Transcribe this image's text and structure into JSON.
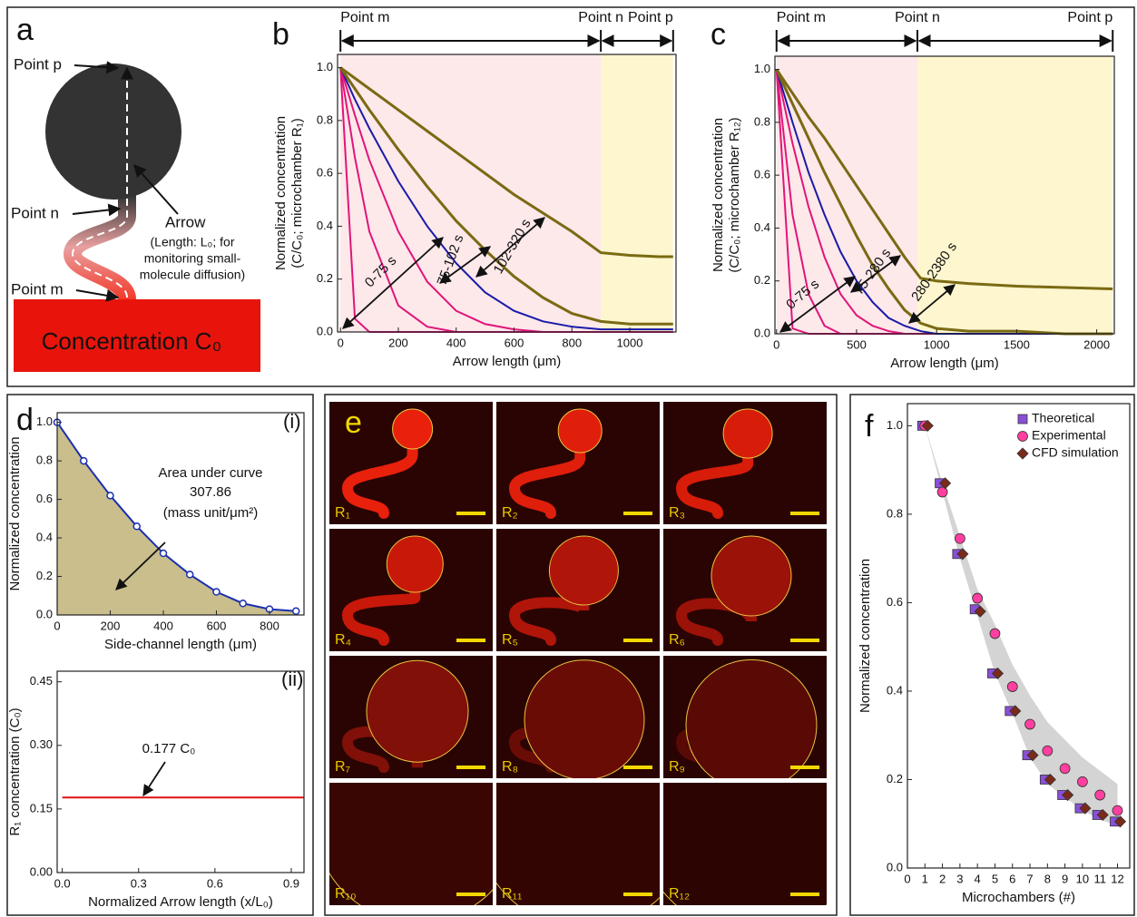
{
  "panel_a": {
    "label": "a",
    "point_p": "Point p",
    "point_n": "Point n",
    "point_m": "Point m",
    "arrow": "Arrow",
    "arrow_note": [
      "(Length: L₀; for",
      "monitoring small-",
      "molecule diffusion)"
    ],
    "source": "Concentration C₀"
  },
  "panel_e": {
    "label": "e",
    "chambers": [
      "R₁",
      "R₂",
      "R₃",
      "R₄",
      "R₅",
      "R₆",
      "R₇",
      "R₈",
      "R₉",
      "R₁₀",
      "R₁₁",
      "R₁₂"
    ]
  },
  "chart_data": [
    {
      "type": "line",
      "panel": "b",
      "xlabel": "Arrow length (μm)",
      "ylabel": [
        "Normalized concentration",
        "(C/C₀; microchamber R₁)"
      ],
      "x": [
        0,
        50,
        100,
        200,
        300,
        400,
        500,
        600,
        700,
        800,
        900,
        1000,
        1100,
        1150
      ],
      "series": [
        {
          "color": "#7a6a12",
          "values": [
            1.0,
            0.96,
            0.92,
            0.84,
            0.76,
            0.68,
            0.6,
            0.52,
            0.45,
            0.38,
            0.3,
            0.29,
            0.285,
            0.285
          ]
        },
        {
          "color": "#7a6a12",
          "values": [
            1.0,
            0.92,
            0.84,
            0.69,
            0.55,
            0.42,
            0.31,
            0.21,
            0.13,
            0.07,
            0.04,
            0.03,
            0.03,
            0.03
          ]
        },
        {
          "color": "#1a1aa8",
          "values": [
            1.0,
            0.88,
            0.77,
            0.57,
            0.4,
            0.26,
            0.15,
            0.08,
            0.04,
            0.02,
            0.01,
            0.01,
            0.01,
            0.01
          ]
        },
        {
          "color": "#e0157a",
          "values": [
            1.0,
            0.82,
            0.65,
            0.38,
            0.19,
            0.08,
            0.03,
            0.01,
            0,
            0,
            0,
            0,
            0,
            0
          ]
        },
        {
          "color": "#e0157a",
          "values": [
            1.0,
            0.66,
            0.38,
            0.1,
            0.02,
            0,
            0,
            0,
            0,
            0,
            0,
            0,
            0,
            0
          ]
        },
        {
          "color": "#e0157a",
          "values": [
            1.0,
            0.05,
            0,
            0,
            0,
            0,
            0,
            0,
            0,
            0,
            0,
            0,
            0,
            0
          ]
        }
      ],
      "xlim": [
        -10,
        1160
      ],
      "ylim": [
        0,
        1.05
      ],
      "xticks": [
        0,
        200,
        400,
        600,
        800,
        1000
      ],
      "yticks": [
        {
          "value": 0,
          "label": "0.0"
        },
        0.2,
        0.4,
        0.6,
        0.8,
        {
          "value": 1,
          "label": "1.0"
        }
      ],
      "points": [
        {
          "label": "Point m",
          "x": 0
        },
        {
          "label": "Point n",
          "x": 900
        },
        {
          "label": "Point p",
          "x": 1150
        }
      ],
      "region_colors": [
        "#fde8ea",
        "#fdf6cf"
      ],
      "annotations": [
        "0-75 s",
        "75-102 s",
        "102-320 s"
      ]
    },
    {
      "type": "line",
      "panel": "c",
      "xlabel": "Arrow length (μm)",
      "ylabel": [
        "Normalized concentration",
        "(C/C₀; microchamber R₁₂)"
      ],
      "x": [
        0,
        100,
        200,
        300,
        400,
        500,
        600,
        700,
        800,
        900,
        1000,
        1200,
        1500,
        1800,
        2100
      ],
      "series": [
        {
          "color": "#7a6a12",
          "values": [
            1.0,
            0.91,
            0.82,
            0.74,
            0.65,
            0.56,
            0.47,
            0.38,
            0.29,
            0.21,
            0.2,
            0.19,
            0.18,
            0.175,
            0.17
          ]
        },
        {
          "color": "#7a6a12",
          "values": [
            1.0,
            0.87,
            0.74,
            0.61,
            0.49,
            0.37,
            0.26,
            0.17,
            0.09,
            0.04,
            0.02,
            0.01,
            0.01,
            0,
            0
          ]
        },
        {
          "color": "#1a1aa8",
          "values": [
            1.0,
            0.8,
            0.61,
            0.45,
            0.31,
            0.2,
            0.12,
            0.06,
            0.03,
            0.01,
            0,
            0,
            0,
            0,
            0
          ]
        },
        {
          "color": "#e0157a",
          "values": [
            1.0,
            0.72,
            0.48,
            0.29,
            0.15,
            0.07,
            0.03,
            0.01,
            0,
            0,
            0,
            0,
            0,
            0,
            0
          ]
        },
        {
          "color": "#e0157a",
          "values": [
            1.0,
            0.45,
            0.15,
            0.03,
            0,
            0,
            0,
            0,
            0,
            0,
            0,
            0,
            0,
            0,
            0
          ]
        },
        {
          "color": "#e0157a",
          "values": [
            1.0,
            0.02,
            0,
            0,
            0,
            0,
            0,
            0,
            0,
            0,
            0,
            0,
            0,
            0,
            0
          ]
        }
      ],
      "xlim": [
        -10,
        2110
      ],
      "ylim": [
        0,
        1.05
      ],
      "xticks": [
        0,
        500,
        1000,
        1500,
        2000
      ],
      "yticks": [
        {
          "value": 0,
          "label": "0.0"
        },
        0.2,
        0.4,
        0.6,
        0.8,
        {
          "value": 1,
          "label": "1.0"
        }
      ],
      "points": [
        {
          "label": "Point m",
          "x": 0
        },
        {
          "label": "Point n",
          "x": 880
        },
        {
          "label": "Point p",
          "x": 2100
        }
      ],
      "region_colors": [
        "#fde8ea",
        "#fdf6cf"
      ],
      "annotations": [
        "0-75 s",
        "75-280 s",
        "280-2380 s"
      ]
    },
    {
      "type": "line",
      "panel": "d",
      "tag": "(i)",
      "xlabel": "Side-channel length (μm)",
      "ylabel": [
        "Normalized concentration"
      ],
      "x": [
        0,
        100,
        200,
        300,
        400,
        500,
        600,
        700,
        800,
        900
      ],
      "series": [
        {
          "color": "#1a2fb0",
          "values": [
            1.0,
            0.8,
            0.62,
            0.46,
            0.32,
            0.21,
            0.12,
            0.06,
            0.03,
            0.02
          ]
        }
      ],
      "fill": "#c9be8c",
      "xlim": [
        0,
        930
      ],
      "ylim": [
        0,
        1.05
      ],
      "xticks": [
        0,
        200,
        400,
        600,
        800
      ],
      "yticks": [
        {
          "value": 0,
          "label": "0.0"
        },
        0.2,
        0.4,
        0.6,
        0.8,
        {
          "value": 1,
          "label": "1.0"
        }
      ],
      "annotations": [
        "Area under curve",
        "307.86",
        "(mass unit/μm²)"
      ]
    },
    {
      "type": "line",
      "tag": "(ii)",
      "xlabel": "Normalized Arrow length (x/L₀)",
      "ylabel": [
        "R₁ concentration (C₀)"
      ],
      "x": [
        0,
        0.95
      ],
      "series": [
        {
          "color": "#e01010",
          "values": [
            0.177,
            0.177
          ]
        }
      ],
      "xlim": [
        -0.02,
        0.95
      ],
      "ylim": [
        0,
        0.475
      ],
      "xticks": [
        {
          "value": 0,
          "label": "0.0"
        },
        0.3,
        0.6,
        0.9
      ],
      "yticks": [
        {
          "value": 0,
          "label": "0.00"
        },
        0.15,
        {
          "value": 0.3,
          "label": "0.30"
        },
        0.45
      ],
      "annotations": [
        "0.177 C₀"
      ]
    },
    {
      "type": "scatter",
      "panel": "f",
      "xlabel": "Microchambers (#)",
      "ylabel": [
        "Normalized concentration"
      ],
      "x": [
        1,
        2,
        3,
        4,
        5,
        6,
        7,
        8,
        9,
        10,
        11,
        12
      ],
      "series": [
        {
          "name": "Theoretical",
          "color": "#8a4fd8",
          "marker": "square",
          "values": [
            1.0,
            0.87,
            0.71,
            0.585,
            0.44,
            0.355,
            0.255,
            0.2,
            0.165,
            0.135,
            0.12,
            0.105
          ]
        },
        {
          "name": "Experimental",
          "color": "#ff3fa0",
          "marker": "circle",
          "values": [
            1.0,
            0.85,
            0.745,
            0.61,
            0.53,
            0.41,
            0.325,
            0.265,
            0.225,
            0.195,
            0.165,
            0.13
          ]
        },
        {
          "name": "CFD simulation",
          "color": "#7a2a1a",
          "marker": "diamond",
          "values": [
            1.0,
            0.87,
            0.71,
            0.58,
            0.44,
            0.355,
            0.255,
            0.2,
            0.165,
            0.135,
            0.12,
            0.105
          ]
        }
      ],
      "band": {
        "color": "#d4d4d4",
        "upper": [
          1.0,
          0.87,
          0.75,
          0.63,
          0.55,
          0.46,
          0.39,
          0.33,
          0.29,
          0.25,
          0.22,
          0.19
        ],
        "lower": [
          1.0,
          0.85,
          0.7,
          0.57,
          0.44,
          0.35,
          0.25,
          0.19,
          0.16,
          0.13,
          0.11,
          0.095
        ]
      },
      "xlim": [
        0,
        12.7
      ],
      "ylim": [
        0,
        1.05
      ],
      "xticks": [
        0,
        1,
        2,
        3,
        4,
        5,
        6,
        7,
        8,
        9,
        10,
        11,
        12
      ],
      "yticks": [
        {
          "value": 0,
          "label": "0.0"
        },
        0.2,
        0.4,
        0.6,
        0.8,
        {
          "value": 1,
          "label": "1.0"
        }
      ],
      "legend": "top-right"
    }
  ]
}
